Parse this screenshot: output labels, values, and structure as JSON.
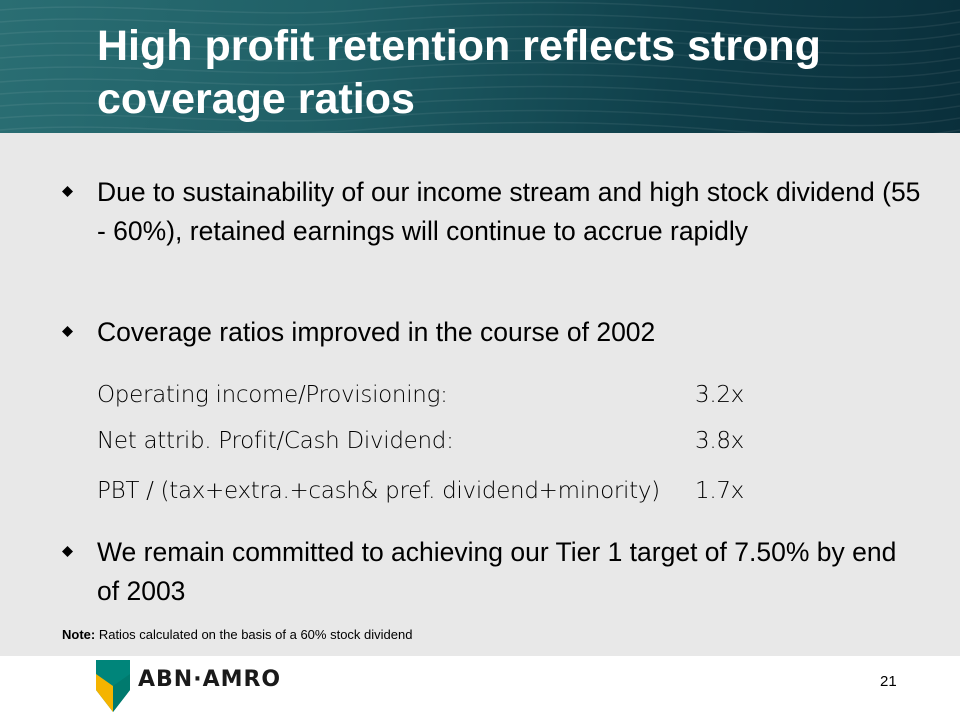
{
  "slide": {
    "title": "High profit retention reflects strong coverage ratios",
    "bullets": [
      "Due to sustainability of our income stream and high stock dividend (55 - 60%), retained earnings will continue to accrue rapidly",
      "Coverage ratios improved in the course of 2002",
      "We remain committed to achieving our Tier 1 target of 7.50% by end of 2003"
    ],
    "ratios": [
      {
        "label": "Operating income/Provisioning:",
        "value": "3.2x"
      },
      {
        "label": "Net attrib. Profit/Cash Dividend:",
        "value": "3.8x"
      },
      {
        "label": "PBT / (tax+extra.+cash& pref. dividend+minority)",
        "value": "1.7x"
      }
    ],
    "note_label": "Note:",
    "note_text": " Ratios calculated on the basis of a 60% stock dividend",
    "page_number": "21"
  },
  "brand": {
    "name": "ABN·AMRO",
    "logo_icon": "abn-amro-shield-icon",
    "bullet_icon": "diamond-bullet-icon",
    "colors": {
      "header_dark": "#0a2f3b",
      "header_teal": "#2a6e73",
      "content_bg": "#e8e8e8",
      "logo_green": "#00857a",
      "logo_yellow": "#f5b400"
    }
  }
}
